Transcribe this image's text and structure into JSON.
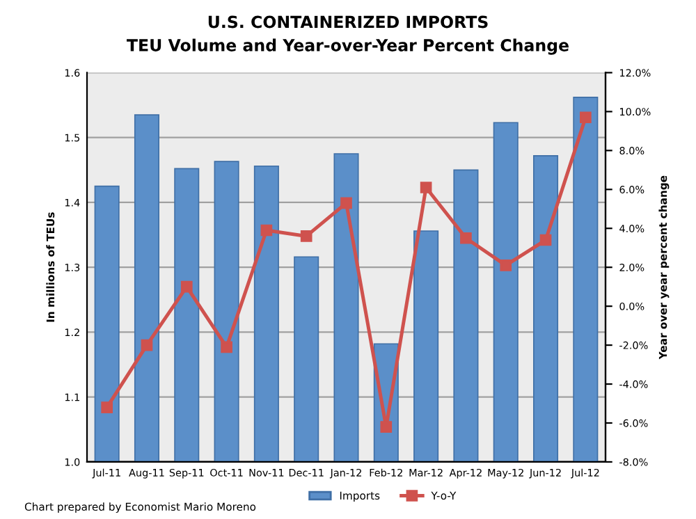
{
  "chart_data": {
    "type": "bar",
    "title": "U.S. CONTAINERIZED IMPORTS",
    "subtitle": "TEU Volume and Year-over-Year Percent Change",
    "ylabel": "In millions of TEUs",
    "y2label": "Year over year percent change",
    "categories": [
      "Jul-11",
      "Aug-11",
      "Sep-11",
      "Oct-11",
      "Nov-11",
      "Dec-11",
      "Jan-12",
      "Feb-12",
      "Mar-12",
      "Apr-12",
      "May-12",
      "Jun-12",
      "Jul-12"
    ],
    "series": [
      {
        "name": "Imports",
        "color": "#5b8fc9",
        "values": [
          1.425,
          1.535,
          1.452,
          1.463,
          1.456,
          1.316,
          1.475,
          1.182,
          1.356,
          1.45,
          1.523,
          1.472,
          1.562
        ]
      },
      {
        "name": "Y-o-Y",
        "type": "line",
        "axis": "y2",
        "color": "#cf524e",
        "marker": "square",
        "values": [
          -5.2,
          -2.0,
          1.0,
          -2.1,
          3.9,
          3.6,
          5.3,
          -6.2,
          6.1,
          3.5,
          2.1,
          3.4,
          9.7
        ]
      }
    ],
    "ylim": [
      1.0,
      1.6
    ],
    "yticks": [
      {
        "value": 1.0,
        "label": "1.0"
      },
      1.1,
      1.2,
      1.3,
      1.4,
      1.5,
      1.6
    ],
    "y2lim": [
      -8,
      12
    ],
    "y2ticks": [
      {
        "value": -8,
        "label": "-8.0%"
      },
      {
        "value": -6,
        "label": "-6.0%"
      },
      {
        "value": -4,
        "label": "-4.0%"
      },
      {
        "value": -2,
        "label": "-2.0%"
      },
      {
        "value": 0,
        "label": "0.0%"
      },
      {
        "value": 2,
        "label": "2.0%"
      },
      {
        "value": 4,
        "label": "4.0%"
      },
      {
        "value": 6,
        "label": "6.0%"
      },
      {
        "value": 8,
        "label": "8.0%"
      },
      {
        "value": 10,
        "label": "10.0%"
      },
      {
        "value": 12,
        "label": "12.0%"
      }
    ],
    "grid": "y",
    "legend": "bottom",
    "annotations": [
      "Chart prepared by Economist Mario Moreno"
    ]
  }
}
